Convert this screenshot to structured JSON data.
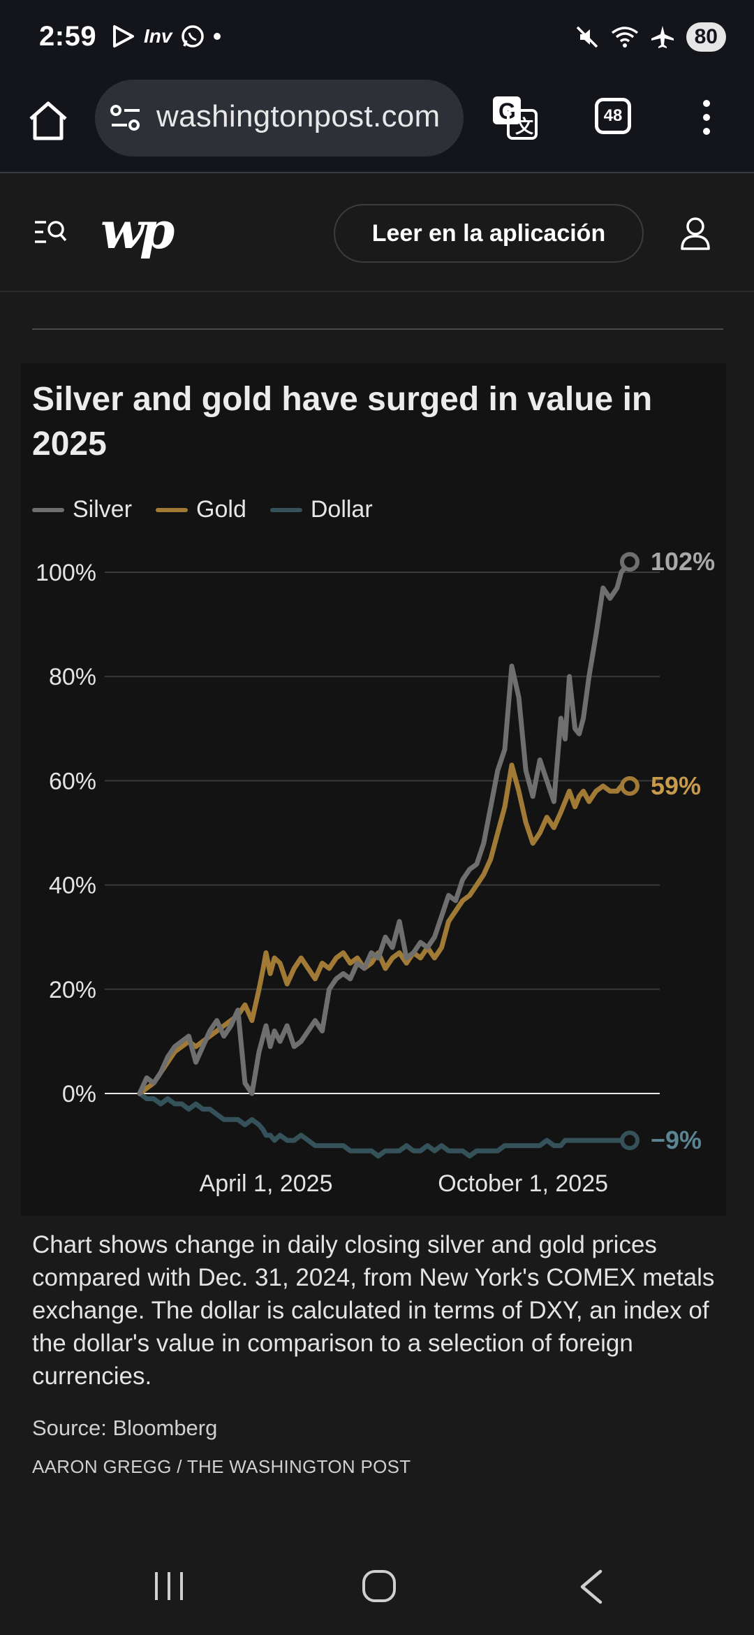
{
  "status_bar": {
    "time": "2:59",
    "inv_label": "Inv",
    "battery": "80",
    "icons": [
      "play-icon",
      "inv-icon",
      "whatsapp-icon",
      "dot-icon",
      "mute-icon",
      "wifi-icon",
      "airplane-icon",
      "battery-icon"
    ]
  },
  "browser": {
    "url": "washingtonpost.com",
    "tab_count": "48"
  },
  "site_header": {
    "logo": "wp",
    "app_button": "Leer en la aplicación"
  },
  "chart_data": {
    "type": "line",
    "title": "Silver and gold have surged in value in 2025",
    "xlabel": "",
    "ylabel": "",
    "ylim": [
      -15,
      105
    ],
    "x_range": [
      "2025-01-01",
      "2025-12-15"
    ],
    "xticks": [
      {
        "day": 90,
        "label": "April 1, 2025"
      },
      {
        "day": 273,
        "label": "October 1, 2025"
      }
    ],
    "yticks": [
      {
        "value": 0,
        "label": "0%"
      },
      {
        "value": 20,
        "label": "20%"
      },
      {
        "value": 40,
        "label": "40%"
      },
      {
        "value": 60,
        "label": "60%"
      },
      {
        "value": 80,
        "label": "80%"
      },
      {
        "value": 100,
        "label": "100%"
      }
    ],
    "series": [
      {
        "name": "Silver",
        "color": "#6f6f70",
        "label_color": "#a9a9a9",
        "end_label": "102%",
        "days": [
          0,
          5,
          10,
          15,
          20,
          25,
          30,
          35,
          40,
          45,
          50,
          55,
          60,
          65,
          70,
          75,
          80,
          85,
          88,
          90,
          93,
          96,
          100,
          105,
          110,
          115,
          120,
          125,
          130,
          135,
          140,
          145,
          150,
          155,
          160,
          165,
          170,
          175,
          180,
          185,
          190,
          195,
          200,
          205,
          210,
          215,
          220,
          225,
          230,
          235,
          240,
          245,
          250,
          255,
          260,
          265,
          270,
          275,
          280,
          285,
          290,
          295,
          300,
          303,
          306,
          310,
          313,
          316,
          320,
          325,
          330,
          335,
          340,
          343,
          346,
          349
        ],
        "values": [
          0,
          3,
          2,
          4,
          7,
          9,
          10,
          11,
          6,
          9,
          12,
          14,
          11,
          13,
          16,
          2,
          0,
          8,
          11,
          13,
          9,
          12,
          10,
          13,
          9,
          10,
          12,
          14,
          12,
          20,
          22,
          23,
          22,
          25,
          24,
          27,
          26,
          30,
          28,
          33,
          26,
          27,
          29,
          28,
          30,
          34,
          38,
          37,
          41,
          43,
          44,
          48,
          55,
          62,
          66,
          82,
          76,
          62,
          57,
          64,
          60,
          56,
          72,
          68,
          80,
          70,
          69,
          72,
          80,
          88,
          97,
          95,
          97,
          100,
          101,
          102
        ]
      },
      {
        "name": "Gold",
        "color": "#a17b36",
        "label_color": "#c79a4c",
        "end_label": "59%",
        "days": [
          0,
          5,
          10,
          15,
          20,
          25,
          30,
          35,
          40,
          45,
          50,
          55,
          60,
          65,
          70,
          75,
          80,
          85,
          88,
          90,
          93,
          96,
          100,
          105,
          110,
          115,
          120,
          125,
          130,
          135,
          140,
          145,
          150,
          155,
          160,
          165,
          170,
          175,
          180,
          185,
          190,
          195,
          200,
          205,
          210,
          215,
          220,
          225,
          230,
          235,
          240,
          245,
          250,
          255,
          260,
          265,
          270,
          275,
          280,
          285,
          290,
          295,
          300,
          303,
          306,
          310,
          313,
          316,
          320,
          325,
          330,
          335,
          340,
          343,
          346,
          349
        ],
        "values": [
          0,
          1,
          2,
          4,
          6,
          8,
          9,
          10,
          9,
          10,
          11,
          12,
          13,
          14,
          15,
          17,
          14,
          20,
          24,
          27,
          23,
          26,
          25,
          21,
          24,
          26,
          24,
          22,
          25,
          24,
          26,
          27,
          25,
          26,
          24,
          25,
          27,
          24,
          26,
          27,
          25,
          27,
          26,
          28,
          26,
          28,
          33,
          35,
          37,
          38,
          40,
          42,
          45,
          50,
          55,
          63,
          58,
          52,
          48,
          50,
          53,
          51,
          54,
          56,
          58,
          55,
          57,
          58,
          56,
          58,
          59,
          58,
          58,
          59,
          59,
          59
        ]
      },
      {
        "name": "Dollar",
        "color": "#35515a",
        "label_color": "#5b8592",
        "end_label": "−9%",
        "days": [
          0,
          5,
          10,
          15,
          20,
          25,
          30,
          35,
          40,
          45,
          50,
          55,
          60,
          65,
          70,
          75,
          80,
          85,
          88,
          90,
          93,
          96,
          100,
          105,
          110,
          115,
          120,
          125,
          130,
          135,
          140,
          145,
          150,
          155,
          160,
          165,
          170,
          175,
          180,
          185,
          190,
          195,
          200,
          205,
          210,
          215,
          220,
          225,
          230,
          235,
          240,
          245,
          250,
          255,
          260,
          265,
          270,
          275,
          280,
          285,
          290,
          295,
          300,
          303,
          306,
          310,
          313,
          316,
          320,
          325,
          330,
          335,
          340,
          343,
          346,
          349
        ],
        "values": [
          0,
          -1,
          -1,
          -2,
          -1,
          -2,
          -2,
          -3,
          -2,
          -3,
          -3,
          -4,
          -5,
          -5,
          -5,
          -6,
          -5,
          -6,
          -7,
          -8,
          -8,
          -9,
          -8,
          -9,
          -9,
          -8,
          -9,
          -10,
          -10,
          -10,
          -10,
          -10,
          -11,
          -11,
          -11,
          -11,
          -12,
          -11,
          -11,
          -11,
          -10,
          -11,
          -11,
          -10,
          -11,
          -10,
          -11,
          -11,
          -11,
          -12,
          -11,
          -11,
          -11,
          -11,
          -10,
          -10,
          -10,
          -10,
          -10,
          -10,
          -9,
          -10,
          -10,
          -9,
          -9,
          -9,
          -9,
          -9,
          -9,
          -9,
          -9,
          -9,
          -9,
          -9,
          -9,
          -9
        ]
      }
    ]
  },
  "caption": {
    "description": "Chart shows change in daily closing silver and gold prices compared with Dec. 31, 2024, from New York's COMEX metals exchange. The dollar is calculated in terms of DXY, an index of the dollar's value in comparison to a selection of foreign currencies.",
    "source": "Source: Bloomberg",
    "credit": "AARON GREGG / THE WASHINGTON POST"
  }
}
